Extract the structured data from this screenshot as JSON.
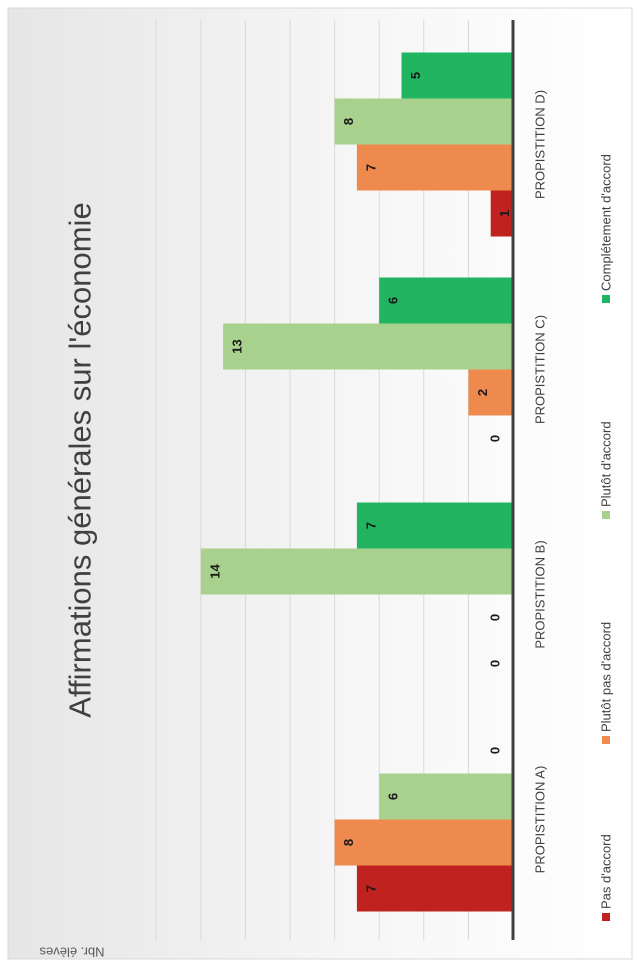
{
  "chart_data": {
    "type": "bar",
    "title": "Affirmations générales sur l'économie",
    "ylabel": "Nbr. élèves",
    "xlabel": "",
    "categories": [
      "PROPISTITION A)",
      "PROPISTITION B)",
      "PROPISTITION C)",
      "PROPISTITION D)"
    ],
    "series": [
      {
        "name": "Pas d'accord",
        "color": "#c0221f",
        "values": [
          7,
          0,
          0,
          1
        ]
      },
      {
        "name": "Plutôt pas d'accord",
        "color": "#ee8a4e",
        "values": [
          8,
          0,
          2,
          7
        ]
      },
      {
        "name": "Plutôt d'accord",
        "color": "#a9d18e",
        "values": [
          6,
          14,
          13,
          8
        ]
      },
      {
        "name": "Complétement d'accord",
        "color": "#22b561",
        "values": [
          0,
          7,
          6,
          5
        ]
      }
    ],
    "ylim": [
      0,
      16
    ],
    "grid": true,
    "legend_position": "bottom",
    "orientation": "rotated 90° (chart rendered sideways)"
  }
}
